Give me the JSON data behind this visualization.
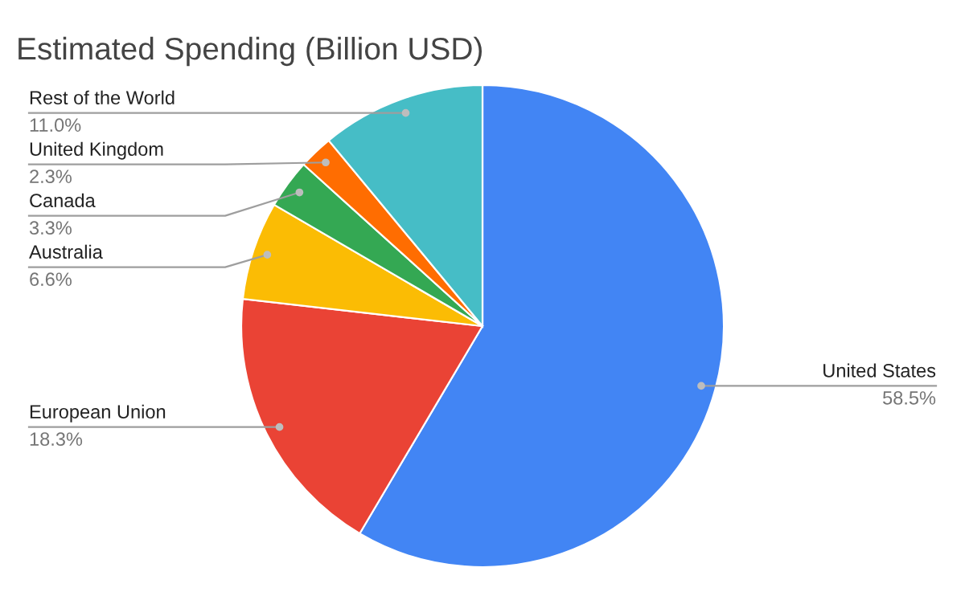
{
  "chart_data": {
    "type": "pie",
    "title": "Estimated Spending (Billion USD)",
    "categories": [
      "United States",
      "European Union",
      "Australia",
      "Canada",
      "United Kingdom",
      "Rest of the World"
    ],
    "values": [
      58.5,
      18.3,
      6.6,
      3.3,
      2.3,
      11.0
    ],
    "value_labels": [
      "58.5%",
      "18.3%",
      "6.6%",
      "3.3%",
      "2.3%",
      "11.0%"
    ],
    "colors": [
      "#4285f4",
      "#ea4335",
      "#fbbc04",
      "#34a853",
      "#ff6d01",
      "#46bdc6"
    ],
    "legend": false
  }
}
